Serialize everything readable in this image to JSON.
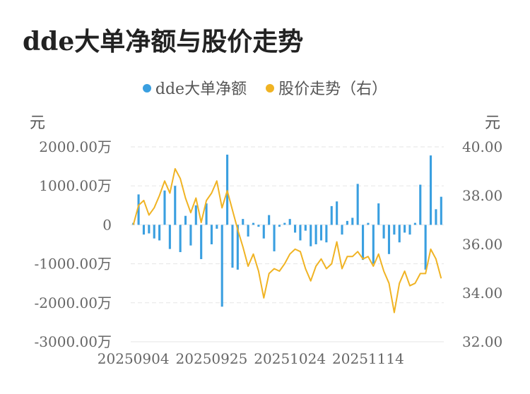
{
  "title": "dde大单净额与股价走势",
  "legend": {
    "bar_label": "dde大单净额",
    "line_label": "股价走势（右）"
  },
  "units": {
    "left": "元",
    "right": "元"
  },
  "colors": {
    "bar": "#3a9fe0",
    "line": "#f0b323",
    "grid": "#e5e5e5",
    "axis": "#cccccc"
  },
  "chart_data": {
    "type": "bar+line",
    "x_tick_labels": [
      "20250904",
      "20250925",
      "20251024",
      "20251114"
    ],
    "y_left": {
      "ticks": [
        2000,
        1000,
        0,
        -1000,
        -2000,
        -3000
      ],
      "tick_labels": [
        "2000.00万",
        "1000.00万",
        "0",
        "-1000.00万",
        "-2000.00万",
        "-3000.00万"
      ],
      "range": [
        -3000,
        2000
      ],
      "unit": "万元"
    },
    "y_right": {
      "ticks": [
        40,
        38,
        36,
        34,
        32
      ],
      "tick_labels": [
        "40.00",
        "38.00",
        "36.00",
        "34.00",
        "32.00"
      ],
      "range": [
        32,
        40
      ]
    },
    "series": [
      {
        "name": "dde大单净额",
        "kind": "bar",
        "axis": "left",
        "values": [
          50,
          780,
          -250,
          -220,
          -350,
          -400,
          880,
          -620,
          1000,
          -700,
          230,
          -530,
          500,
          -880,
          550,
          -500,
          -100,
          -2100,
          1800,
          -1100,
          -1150,
          150,
          -300,
          50,
          -50,
          -350,
          250,
          -680,
          -50,
          50,
          150,
          -200,
          -400,
          -150,
          -550,
          -500,
          -400,
          -450,
          480,
          600,
          -250,
          100,
          180,
          1050,
          -900,
          50,
          -1000,
          550,
          -350,
          -750,
          -250,
          -450,
          -200,
          -250,
          50,
          1030,
          -1150,
          1780,
          400,
          720
        ]
      },
      {
        "name": "股价走势（右）",
        "kind": "line",
        "axis": "right",
        "values": [
          36.8,
          37.6,
          37.8,
          37.2,
          37.5,
          38.0,
          38.6,
          38.1,
          39.1,
          38.7,
          37.9,
          37.3,
          37.9,
          36.9,
          37.8,
          38.1,
          38.6,
          37.5,
          38.2,
          37.4,
          36.6,
          35.9,
          35.1,
          35.6,
          34.9,
          33.8,
          34.8,
          35.0,
          34.9,
          35.2,
          35.6,
          35.8,
          35.7,
          35.0,
          34.5,
          35.1,
          35.4,
          35.0,
          35.2,
          36.1,
          35.0,
          35.5,
          35.5,
          35.7,
          35.4,
          35.5,
          35.1,
          35.6,
          34.9,
          34.4,
          33.2,
          34.4,
          34.9,
          34.3,
          34.4,
          34.8,
          34.8,
          35.8,
          35.4,
          34.6
        ]
      }
    ],
    "grid": true,
    "legend_position": "top-center"
  }
}
